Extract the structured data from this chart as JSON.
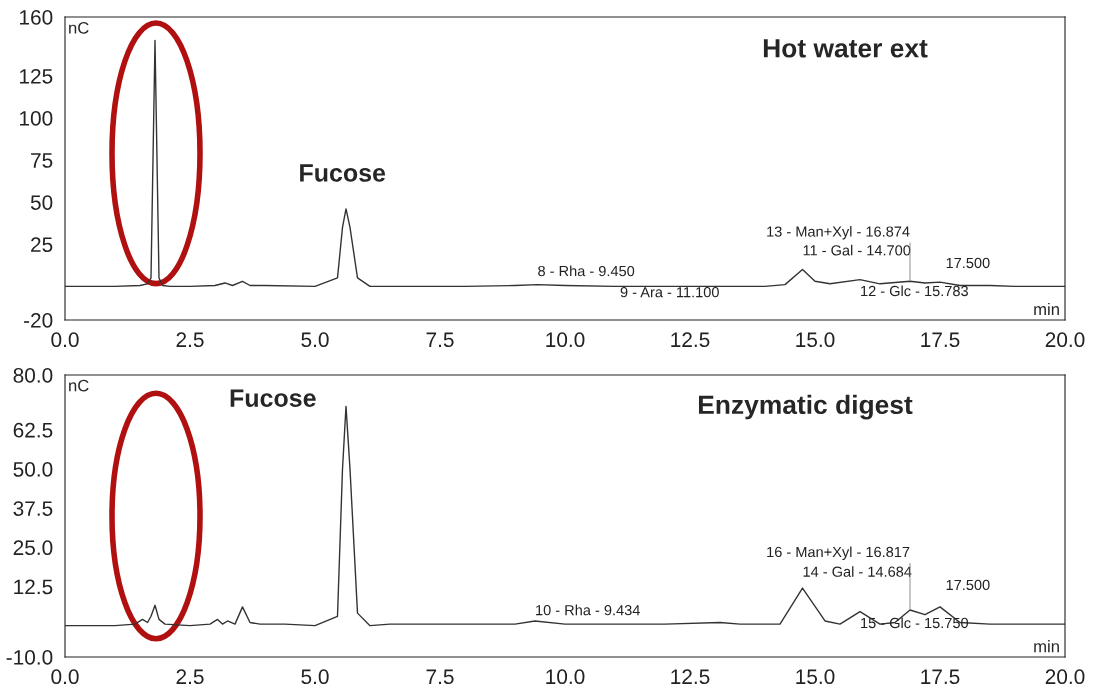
{
  "chart_data": [
    {
      "type": "line",
      "title": "Hot water ext",
      "xlabel": "min",
      "ylabel": "nC",
      "xlim": [
        0,
        20
      ],
      "xticks": [
        {
          "value": 0,
          "label": "0.0"
        },
        {
          "value": 2.5,
          "label": "2.5"
        },
        {
          "value": 5,
          "label": "5.0"
        },
        {
          "value": 7.5,
          "label": "7.5"
        },
        {
          "value": 10,
          "label": "10.0"
        },
        {
          "value": 12.5,
          "label": "12.5"
        },
        {
          "value": 15,
          "label": "15.0"
        },
        {
          "value": 17.5,
          "label": "17.5"
        },
        {
          "value": 20,
          "label": "20.0"
        }
      ],
      "ylim": [
        -20,
        160
      ],
      "yticks": [
        -20,
        25,
        50,
        75,
        100,
        125,
        160
      ],
      "series": [
        {
          "color": "#333333",
          "x": [
            0,
            1.0,
            1.5,
            1.65,
            1.72,
            1.8,
            1.88,
            1.95,
            2.1,
            2.5,
            3.0,
            3.2,
            3.35,
            3.55,
            3.7,
            4.0,
            5.0,
            5.45,
            5.55,
            5.62,
            5.7,
            5.85,
            6.1,
            7.0,
            8.0,
            9.0,
            9.45,
            10.0,
            11.0,
            12.0,
            13.0,
            14.0,
            14.4,
            14.75,
            15.0,
            15.3,
            15.9,
            16.3,
            16.9,
            17.2,
            17.5,
            17.9,
            18.5,
            19.0,
            20.0
          ],
          "values": [
            0,
            0,
            0.5,
            1.5,
            5,
            146,
            5,
            0.5,
            0,
            0,
            0.5,
            2,
            0.5,
            3,
            0.5,
            0.5,
            0,
            5,
            35,
            46,
            35,
            5,
            0,
            0,
            0,
            0.5,
            1,
            0.5,
            0,
            0,
            0,
            0,
            1,
            10,
            3,
            1.5,
            4,
            1.5,
            3,
            2,
            2.5,
            0.5,
            0.5,
            0,
            0
          ]
        }
      ],
      "annotations": [
        {
          "text": "Fucose",
          "x": 5.6,
          "y": 46
        },
        {
          "text": "8 - Rha - 9.450",
          "x": 9.45,
          "y": 1
        },
        {
          "text": "9 - Ara - 11.100",
          "x": 11.1,
          "y": 0
        },
        {
          "text": "11 - Gal - 14.700",
          "x": 14.75,
          "y": 10
        },
        {
          "text": "12 - Glc - 15.783",
          "x": 15.9,
          "y": 4
        },
        {
          "text": "13 - Man+Xyl - 16.874",
          "x": 16.9,
          "y": 3
        },
        {
          "text": "17.500",
          "x": 17.5,
          "y": 2.5
        }
      ]
    },
    {
      "type": "line",
      "title": "Enzymatic digest",
      "xlabel": "min",
      "ylabel": "nC",
      "xlim": [
        0,
        20
      ],
      "xticks": [
        {
          "value": 0,
          "label": "0.0"
        },
        {
          "value": 2.5,
          "label": "2.5"
        },
        {
          "value": 5,
          "label": "5.0"
        },
        {
          "value": 7.5,
          "label": "7.5"
        },
        {
          "value": 10,
          "label": "10.0"
        },
        {
          "value": 12.5,
          "label": "12.5"
        },
        {
          "value": 15,
          "label": "15.0"
        },
        {
          "value": 17.5,
          "label": "17.5"
        },
        {
          "value": 20,
          "label": "20.0"
        }
      ],
      "ylim": [
        -10,
        80
      ],
      "yticks": [
        {
          "value": -10,
          "label": "-10.0"
        },
        {
          "value": 12.5,
          "label": "12.5"
        },
        {
          "value": 25,
          "label": "25.0"
        },
        {
          "value": 37.5,
          "label": "37.5"
        },
        {
          "value": 50,
          "label": "50.0"
        },
        {
          "value": 62.5,
          "label": "62.5"
        },
        {
          "value": 80,
          "label": "80.0"
        }
      ],
      "series": [
        {
          "color": "#333333",
          "x": [
            0,
            1.0,
            1.4,
            1.55,
            1.65,
            1.72,
            1.8,
            1.88,
            2.0,
            2.5,
            2.9,
            3.05,
            3.15,
            3.25,
            3.4,
            3.55,
            3.7,
            3.9,
            4.4,
            5.0,
            5.45,
            5.55,
            5.62,
            5.7,
            5.85,
            6.1,
            6.5,
            7.5,
            9.0,
            9.4,
            10.0,
            12.0,
            13.1,
            13.5,
            14.3,
            14.75,
            15.2,
            15.5,
            15.9,
            16.3,
            16.6,
            16.9,
            17.2,
            17.5,
            17.9,
            18.5,
            20.0
          ],
          "values": [
            0,
            0,
            0.5,
            2,
            1,
            3,
            6.5,
            2,
            0.5,
            0,
            0.5,
            2,
            0.5,
            1.5,
            0.5,
            6,
            1,
            0.5,
            0.5,
            0,
            3,
            50,
            70,
            50,
            4,
            0,
            0.5,
            0.5,
            0.5,
            1.5,
            0.5,
            0.5,
            1,
            0.5,
            0.5,
            12,
            1.5,
            0.5,
            4.5,
            0.5,
            1,
            5,
            3.5,
            6,
            1,
            0.5,
            0.5
          ]
        }
      ],
      "annotations": [
        {
          "text": "Fucose",
          "x": 5.6,
          "y": 70
        },
        {
          "text": "10 - Rha - 9.434",
          "x": 9.4,
          "y": 1.5
        },
        {
          "text": "14 - Gal - 14.684",
          "x": 14.75,
          "y": 12
        },
        {
          "text": "15 - Glc - 15.750",
          "x": 15.9,
          "y": 4.5
        },
        {
          "text": "16 - Man+Xyl - 16.817",
          "x": 16.9,
          "y": 5
        },
        {
          "text": "17.500",
          "x": 17.5,
          "y": 6
        }
      ]
    }
  ]
}
